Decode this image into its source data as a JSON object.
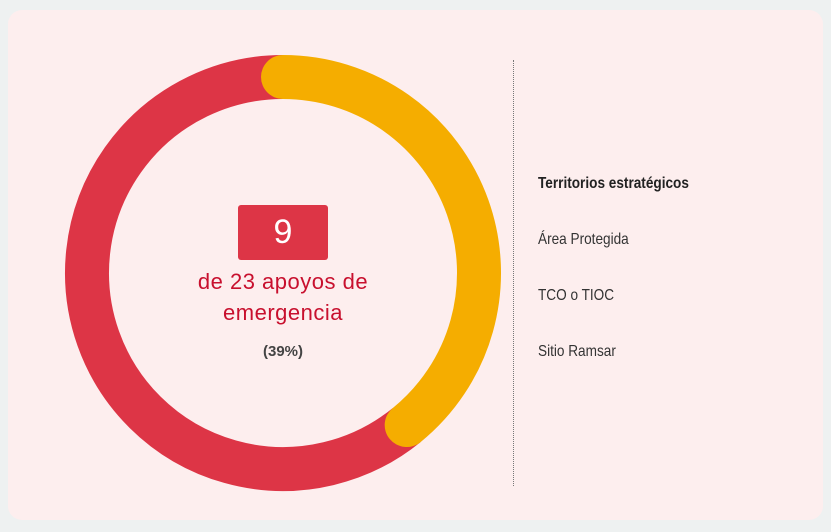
{
  "chart_data": {
    "type": "donut",
    "values": [
      9,
      14
    ],
    "colors": [
      "#f5ad00",
      "#dd3546"
    ],
    "center_text": "de 23 apoyos de emergencia",
    "percent_label": "(39%)",
    "legend": {
      "title": "Territorios estratégicos",
      "items": [
        "Área Protegida",
        "TCO o TIOC",
        "Sitio Ramsar"
      ]
    }
  }
}
